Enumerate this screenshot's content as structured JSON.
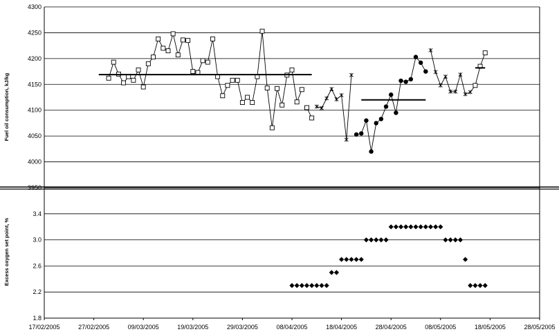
{
  "chart_data": [
    {
      "type": "line",
      "ylabel": "Fuel oil consumption, kJ/kg",
      "ylim": [
        3950,
        4300
      ],
      "yticks": [
        "3950",
        "4000",
        "4050",
        "4100",
        "4150",
        "4200",
        "4250",
        "4300"
      ],
      "grid": true,
      "series": [
        {
          "marker": "open-square",
          "x": [
            "2005-03-02",
            "2005-03-03",
            "2005-03-04",
            "2005-03-05",
            "2005-03-06",
            "2005-03-07",
            "2005-03-08",
            "2005-03-09",
            "2005-03-10",
            "2005-03-11",
            "2005-03-12",
            "2005-03-13",
            "2005-03-14",
            "2005-03-15",
            "2005-03-16",
            "2005-03-17",
            "2005-03-18",
            "2005-03-19",
            "2005-03-20",
            "2005-03-21",
            "2005-03-22",
            "2005-03-23",
            "2005-03-24",
            "2005-03-25",
            "2005-03-26",
            "2005-03-27",
            "2005-03-28",
            "2005-03-29",
            "2005-03-30",
            "2005-03-31",
            "2005-04-01",
            "2005-04-02",
            "2005-04-03",
            "2005-04-04",
            "2005-04-05",
            "2005-04-06",
            "2005-04-07",
            "2005-04-08",
            "2005-04-09",
            "2005-04-10"
          ],
          "values": [
            4162,
            4193,
            4170,
            4153,
            4165,
            4158,
            4178,
            4145,
            4190,
            4203,
            4238,
            4220,
            4215,
            4248,
            4207,
            4236,
            4235,
            4175,
            4173,
            4196,
            4193,
            4238,
            4165,
            4128,
            4148,
            4158,
            4158,
            4115,
            4125,
            4115,
            4165,
            4253,
            4143,
            4066,
            4142,
            4110,
            4168,
            4178,
            4116,
            4140
          ]
        },
        {
          "marker": "open-square",
          "x": [
            "2005-04-11",
            "2005-04-12"
          ],
          "values": [
            4105,
            4085
          ]
        },
        {
          "marker": "asterisk",
          "x": [
            "2005-04-13",
            "2005-04-14",
            "2005-04-15",
            "2005-04-16",
            "2005-04-17",
            "2005-04-18",
            "2005-04-19",
            "2005-04-20"
          ],
          "values": [
            4107,
            4104,
            4123,
            4141,
            4121,
            4129,
            4043,
            4168
          ]
        },
        {
          "marker": "filled-circle",
          "x": [
            "2005-04-21",
            "2005-04-22",
            "2005-04-23",
            "2005-04-24",
            "2005-04-25",
            "2005-04-26",
            "2005-04-27",
            "2005-04-28",
            "2005-04-29",
            "2005-04-30",
            "2005-05-01",
            "2005-05-02",
            "2005-05-03",
            "2005-05-04",
            "2005-05-05"
          ],
          "values": [
            4053,
            4055,
            4080,
            4020,
            4075,
            4083,
            4107,
            4130,
            4095,
            4157,
            4155,
            4160,
            4203,
            4192,
            4175
          ]
        },
        {
          "marker": "asterisk",
          "x": [
            "2005-05-06",
            "2005-05-07",
            "2005-05-08",
            "2005-05-09",
            "2005-05-10",
            "2005-05-11",
            "2005-05-12",
            "2005-05-13",
            "2005-05-14",
            "2005-05-15"
          ],
          "values": [
            4216,
            4174,
            4148,
            4165,
            4136,
            4136,
            4169,
            4131,
            4135,
            4148
          ]
        },
        {
          "marker": "open-square",
          "x": [
            "2005-05-15",
            "2005-05-16",
            "2005-05-17"
          ],
          "values": [
            4148,
            4185,
            4211
          ]
        }
      ],
      "mean_lines": [
        {
          "x": [
            "2005-02-28",
            "2005-04-12"
          ],
          "value": 4169
        },
        {
          "x": [
            "2005-04-22",
            "2005-05-05"
          ],
          "value": 4120
        },
        {
          "x": [
            "2005-05-15",
            "2005-05-17"
          ],
          "value": 4182
        }
      ]
    },
    {
      "type": "scatter",
      "ylabel": "Excess oxygen set point, %",
      "ylim": [
        1.8,
        3.8
      ],
      "yticks": [
        "1.8",
        "2.2",
        "2.6",
        "3.0",
        "3.4"
      ],
      "xticks": [
        "17/02/2005",
        "27/02/2005",
        "09/03/2005",
        "19/03/2005",
        "29/03/2005",
        "08/04/2005",
        "18/04/2005",
        "28/04/2005",
        "08/05/2005",
        "18/05/2005",
        "28/05/2005"
      ],
      "grid": true,
      "series": [
        {
          "marker": "filled-diamond",
          "x": [
            "2005-04-08",
            "2005-04-09",
            "2005-04-10",
            "2005-04-11",
            "2005-04-12",
            "2005-04-13",
            "2005-04-14",
            "2005-04-15",
            "2005-04-16",
            "2005-04-17",
            "2005-04-18",
            "2005-04-19",
            "2005-04-20",
            "2005-04-21",
            "2005-04-22",
            "2005-04-23",
            "2005-04-24",
            "2005-04-25",
            "2005-04-26",
            "2005-04-27",
            "2005-04-28",
            "2005-04-29",
            "2005-04-30",
            "2005-05-01",
            "2005-05-02",
            "2005-05-03",
            "2005-05-04",
            "2005-05-05",
            "2005-05-06",
            "2005-05-07",
            "2005-05-08",
            "2005-05-09",
            "2005-05-10",
            "2005-05-11",
            "2005-05-12",
            "2005-05-13",
            "2005-05-14",
            "2005-05-15",
            "2005-05-16",
            "2005-05-17"
          ],
          "values": [
            2.3,
            2.3,
            2.3,
            2.3,
            2.3,
            2.3,
            2.3,
            2.3,
            2.5,
            2.5,
            2.7,
            2.7,
            2.7,
            2.7,
            2.7,
            3.0,
            3.0,
            3.0,
            3.0,
            3.0,
            3.2,
            3.2,
            3.2,
            3.2,
            3.2,
            3.2,
            3.2,
            3.2,
            3.2,
            3.2,
            3.2,
            3.0,
            3.0,
            3.0,
            3.0,
            2.7,
            2.3,
            2.3,
            2.3,
            2.3
          ]
        }
      ]
    }
  ]
}
